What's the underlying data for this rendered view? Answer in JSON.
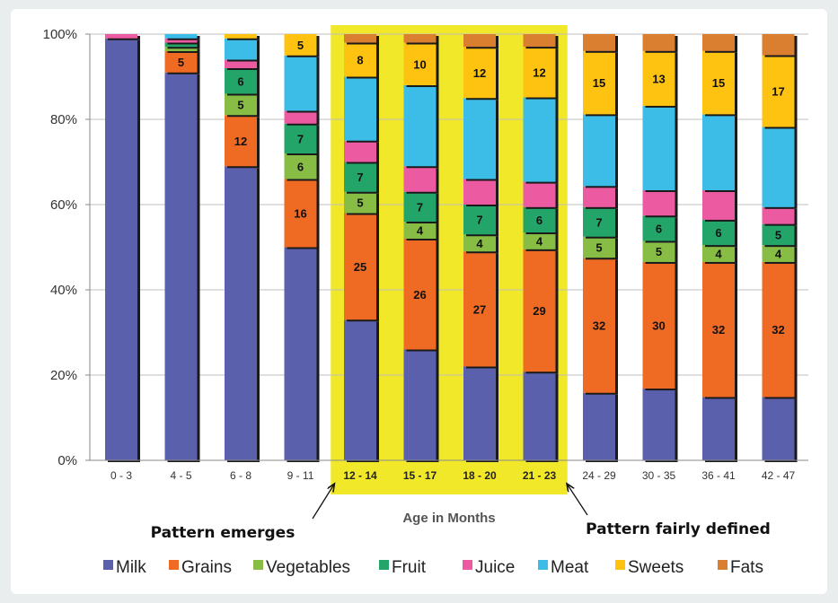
{
  "chart_data": {
    "type": "bar",
    "stacked": true,
    "percent": true,
    "xlabel": "Age in Months",
    "ylabel": "",
    "ylim": [
      0,
      100
    ],
    "yticks": [
      "0%",
      "20%",
      "40%",
      "60%",
      "80%",
      "100%"
    ],
    "grid": true,
    "legend_position": "bottom",
    "highlight": {
      "from_index": 4,
      "to_index": 7,
      "color": "#f2e82a"
    },
    "categories": [
      "0 - 3",
      "4 - 5",
      "6 - 8",
      "9 - 11",
      "12 - 14",
      "15 - 17",
      "18 - 20",
      "21 - 23",
      "24 - 29",
      "30 - 35",
      "36 - 41",
      "42 - 47"
    ],
    "series": [
      {
        "name": "Milk",
        "color": "#5b60ac",
        "values": [
          99,
          91,
          69,
          50,
          33,
          26,
          22,
          21,
          16,
          17,
          15,
          15
        ],
        "labels": [
          "",
          "",
          "",
          "",
          "",
          "",
          "",
          "",
          "",
          "",
          "",
          ""
        ]
      },
      {
        "name": "Grains",
        "color": "#ef6a23",
        "values": [
          0,
          5,
          12,
          16,
          25,
          26,
          27,
          29,
          32,
          30,
          32,
          32
        ],
        "labels": [
          "",
          "5",
          "12",
          "16",
          "25",
          "26",
          "27",
          "29",
          "32",
          "30",
          "32",
          "32"
        ]
      },
      {
        "name": "Vegetables",
        "color": "#88bd45",
        "values": [
          0,
          1,
          5,
          6,
          5,
          4,
          4,
          4,
          5,
          5,
          4,
          4
        ],
        "labels": [
          "",
          "",
          "5",
          "6",
          "5",
          "4",
          "4",
          "4",
          "5",
          "5",
          "4",
          "4"
        ]
      },
      {
        "name": "Fruit",
        "color": "#23a56a",
        "values": [
          0,
          1,
          6,
          7,
          7,
          7,
          7,
          6,
          7,
          6,
          6,
          5
        ],
        "labels": [
          "",
          "",
          "6",
          "7",
          "7",
          "7",
          "7",
          "6",
          "7",
          "6",
          "6",
          "5"
        ]
      },
      {
        "name": "Juice",
        "color": "#ec5ba1",
        "values": [
          1,
          1,
          2,
          3,
          5,
          6,
          6,
          6,
          5,
          6,
          7,
          4
        ],
        "labels": [
          "",
          "",
          "",
          "",
          "",
          "",
          "",
          "",
          "",
          "",
          "",
          ""
        ]
      },
      {
        "name": "Meat",
        "color": "#3cbde8",
        "values": [
          0,
          1,
          5,
          13,
          15,
          19,
          19,
          20,
          17,
          20,
          18,
          19
        ],
        "labels": [
          "",
          "",
          "",
          "",
          "",
          "",
          "",
          "",
          "",
          "",
          "",
          ""
        ]
      },
      {
        "name": "Sweets",
        "color": "#fec310",
        "values": [
          0,
          0,
          1,
          5,
          8,
          10,
          12,
          12,
          15,
          13,
          15,
          17
        ],
        "labels": [
          "",
          "",
          "",
          "5",
          "8",
          "10",
          "12",
          "12",
          "15",
          "13",
          "15",
          "17"
        ]
      },
      {
        "name": "Fats",
        "color": "#d97f2f",
        "values": [
          0,
          0,
          0,
          0,
          2,
          2,
          3,
          3,
          4,
          4,
          4,
          5
        ],
        "labels": [
          "",
          "",
          "",
          "",
          "",
          "",
          "",
          "",
          "",
          "",
          "",
          ""
        ]
      }
    ],
    "annotations": [
      {
        "text": "Pattern emerges",
        "points_to_index": 4
      },
      {
        "text": "Pattern fairly defined",
        "points_to_index": 8
      }
    ]
  }
}
